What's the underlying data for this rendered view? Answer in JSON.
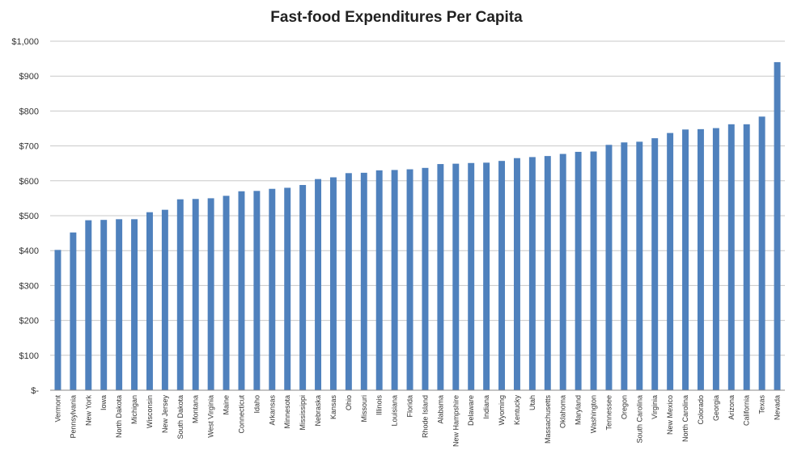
{
  "chart_data": {
    "type": "bar",
    "title": "Fast-food Expenditures Per Capita",
    "xlabel": "",
    "ylabel": "",
    "ylim": [
      0,
      1000
    ],
    "yticks": [
      0,
      100,
      200,
      300,
      400,
      500,
      600,
      700,
      800,
      900,
      1000
    ],
    "ytick_labels": [
      "$-",
      "$100",
      "$200",
      "$300",
      "$400",
      "$500",
      "$600",
      "$700",
      "$800",
      "$900",
      "$1,000"
    ],
    "grid": true,
    "bar_color": "#4f81bd",
    "categories": [
      "Vermont",
      "Pennsylvania",
      "New York",
      "Iowa",
      "North Dakota",
      "Michigan",
      "Wisconsin",
      "New Jersey",
      "South Dakota",
      "Montana",
      "West Virginia",
      "Maine",
      "Connecticut",
      "Idaho",
      "Arkansas",
      "Minnesota",
      "Mississippi",
      "Nebraska",
      "Kansas",
      "Ohio",
      "Missouri",
      "Illinois",
      "Louisiana",
      "Florida",
      "Rhode Island",
      "Alabama",
      "New Hampshire",
      "Delaware",
      "Indiana",
      "Wyoming",
      "Kentucky",
      "Utah",
      "Massachusetts",
      "Oklahoma",
      "Maryland",
      "Washington",
      "Tennessee",
      "Oregon",
      "South Carolina",
      "Virginia",
      "New Mexico",
      "North Carolina",
      "Colorado",
      "Georgia",
      "Arizona",
      "California",
      "Texas",
      "Nevada"
    ],
    "values": [
      402,
      452,
      487,
      488,
      490,
      490,
      510,
      517,
      547,
      548,
      550,
      557,
      570,
      571,
      577,
      580,
      588,
      605,
      610,
      622,
      623,
      630,
      631,
      633,
      637,
      648,
      649,
      651,
      652,
      657,
      665,
      668,
      671,
      677,
      683,
      684,
      703,
      710,
      712,
      722,
      737,
      747,
      748,
      751,
      762,
      762,
      784,
      940
    ]
  }
}
